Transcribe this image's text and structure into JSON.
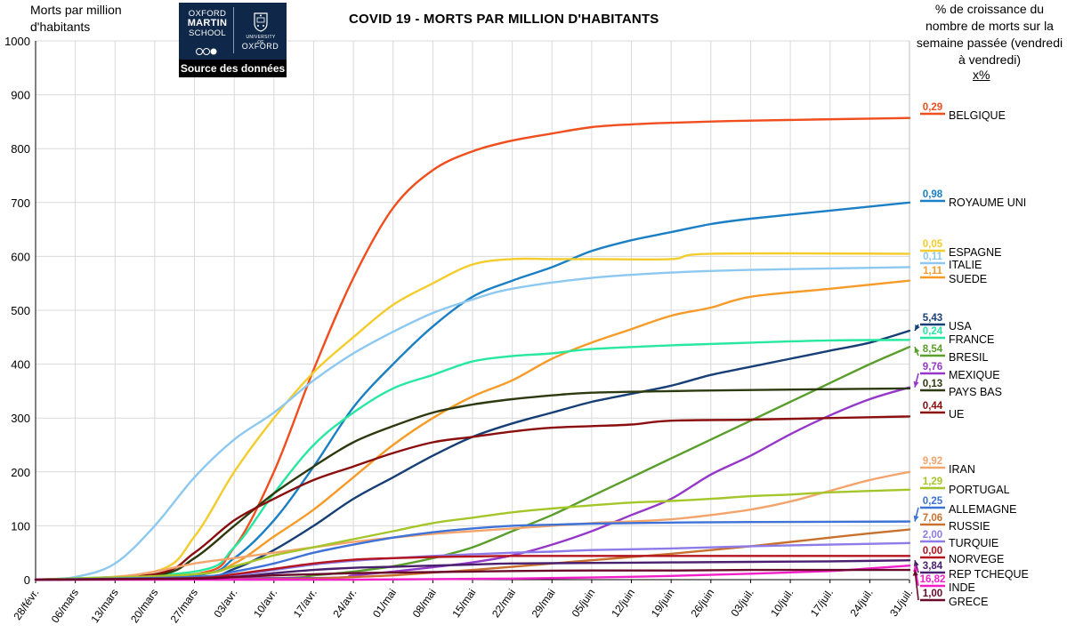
{
  "chart_data": {
    "type": "line",
    "title": "COVID 19 - MORTS PAR MILLION D'HABITANTS",
    "ylabel": "Morts par million d'habitants",
    "right_note": "% de croissance du nombre de morts sur la semaine passée (vendredi à vendredi)",
    "right_note_unit": "x%",
    "ylim": [
      0,
      1000
    ],
    "yticks": [
      0,
      100,
      200,
      300,
      400,
      500,
      600,
      700,
      800,
      900,
      1000
    ],
    "xlim": [
      0,
      154
    ],
    "xticks": [
      {
        "day": 0,
        "label": "28/févr."
      },
      {
        "day": 7,
        "label": "06/mars"
      },
      {
        "day": 14,
        "label": "13/mars"
      },
      {
        "day": 21,
        "label": "20/mars"
      },
      {
        "day": 28,
        "label": "27/mars"
      },
      {
        "day": 35,
        "label": "03/avr."
      },
      {
        "day": 42,
        "label": "10/avr."
      },
      {
        "day": 49,
        "label": "17/avr."
      },
      {
        "day": 56,
        "label": "24/avr."
      },
      {
        "day": 63,
        "label": "01/mai"
      },
      {
        "day": 70,
        "label": "08/mai"
      },
      {
        "day": 77,
        "label": "15/mai"
      },
      {
        "day": 84,
        "label": "22/mai"
      },
      {
        "day": 91,
        "label": "29/mai"
      },
      {
        "day": 98,
        "label": "05/juin"
      },
      {
        "day": 105,
        "label": "12/juin"
      },
      {
        "day": 112,
        "label": "19/juin"
      },
      {
        "day": 119,
        "label": "26/juin"
      },
      {
        "day": 126,
        "label": "03/juil."
      },
      {
        "day": 133,
        "label": "10/juil."
      },
      {
        "day": 140,
        "label": "17/juil."
      },
      {
        "day": 147,
        "label": "24/juil."
      },
      {
        "day": 154,
        "label": "31/juil."
      }
    ],
    "grid": true,
    "series": [
      {
        "name": "BELGIQUE",
        "growth": "0,29",
        "color": "#f04e1e",
        "label_y": 130,
        "x": [
          0,
          28,
          35,
          42,
          49,
          56,
          63,
          70,
          77,
          84,
          91,
          98,
          105,
          112,
          126,
          154
        ],
        "values": [
          0,
          10,
          60,
          200,
          390,
          560,
          690,
          760,
          795,
          815,
          828,
          840,
          845,
          848,
          852,
          857
        ]
      },
      {
        "name": "ROYAUME UNI",
        "growth": "0,98",
        "color": "#1a7fc4",
        "label_y": 228,
        "x": [
          0,
          28,
          35,
          42,
          49,
          56,
          63,
          70,
          77,
          84,
          91,
          98,
          105,
          112,
          119,
          126,
          140,
          154
        ],
        "values": [
          0,
          8,
          40,
          110,
          210,
          320,
          400,
          470,
          525,
          555,
          580,
          610,
          630,
          645,
          660,
          670,
          685,
          700
        ]
      },
      {
        "name": "ESPAGNE",
        "growth": "0,05",
        "color": "#f4cc2c",
        "label_y": 284,
        "x": [
          0,
          21,
          28,
          35,
          42,
          49,
          56,
          63,
          70,
          77,
          84,
          91,
          98,
          112,
          119,
          154
        ],
        "values": [
          0,
          15,
          80,
          200,
          300,
          385,
          450,
          510,
          550,
          585,
          595,
          595,
          595,
          595,
          605,
          605
        ]
      },
      {
        "name": "ITALIE",
        "growth": "0,11",
        "color": "#8cc8f0",
        "label_y": 298,
        "x": [
          0,
          7,
          14,
          21,
          28,
          35,
          42,
          49,
          56,
          63,
          70,
          77,
          84,
          98,
          112,
          126,
          154
        ],
        "values": [
          0,
          5,
          30,
          100,
          190,
          260,
          310,
          370,
          420,
          460,
          495,
          520,
          540,
          560,
          570,
          575,
          580
        ]
      },
      {
        "name": "SUEDE",
        "growth": "1,11",
        "color": "#f79b28",
        "label_y": 314,
        "x": [
          0,
          28,
          35,
          42,
          49,
          56,
          63,
          70,
          77,
          84,
          91,
          98,
          105,
          112,
          119,
          126,
          140,
          154
        ],
        "values": [
          0,
          10,
          30,
          80,
          130,
          190,
          250,
          300,
          340,
          370,
          410,
          440,
          465,
          490,
          505,
          525,
          540,
          555
        ]
      },
      {
        "name": "USA",
        "growth": "5,43",
        "color": "#173f76",
        "label_y": 367,
        "x": [
          0,
          28,
          35,
          42,
          49,
          56,
          63,
          70,
          77,
          84,
          91,
          98,
          105,
          112,
          119,
          126,
          133,
          140,
          147,
          154
        ],
        "values": [
          0,
          3,
          20,
          55,
          100,
          150,
          190,
          230,
          265,
          290,
          310,
          330,
          345,
          360,
          380,
          395,
          410,
          425,
          440,
          462
        ]
      },
      {
        "name": "FRANCE",
        "growth": "0,24",
        "color": "#27e8a0",
        "label_y": 382,
        "x": [
          0,
          28,
          35,
          42,
          49,
          56,
          63,
          70,
          77,
          84,
          91,
          98,
          112,
          126,
          140,
          154
        ],
        "values": [
          0,
          15,
          60,
          160,
          250,
          310,
          355,
          380,
          405,
          415,
          420,
          428,
          435,
          440,
          444,
          445
        ]
      },
      {
        "name": "BRESIL",
        "growth": "8,54",
        "color": "#5a9e2b",
        "label_y": 402,
        "x": [
          0,
          42,
          49,
          56,
          63,
          70,
          77,
          84,
          91,
          98,
          105,
          112,
          119,
          126,
          133,
          140,
          147,
          154
        ],
        "values": [
          0,
          3,
          8,
          15,
          25,
          40,
          60,
          90,
          120,
          155,
          190,
          225,
          260,
          295,
          330,
          365,
          400,
          432
        ]
      },
      {
        "name": "MEXIQUE",
        "growth": "9,76",
        "color": "#9538c9",
        "label_y": 422,
        "x": [
          0,
          49,
          56,
          63,
          70,
          77,
          84,
          91,
          98,
          105,
          112,
          119,
          126,
          133,
          140,
          147,
          154
        ],
        "values": [
          0,
          3,
          8,
          15,
          23,
          32,
          45,
          65,
          90,
          120,
          150,
          195,
          230,
          270,
          305,
          335,
          357
        ]
      },
      {
        "name": "PAYS BAS",
        "growth": "0,13",
        "color": "#2d3a0f",
        "label_y": 441,
        "x": [
          0,
          21,
          28,
          35,
          42,
          49,
          56,
          63,
          70,
          77,
          84,
          91,
          98,
          112,
          126,
          154
        ],
        "values": [
          0,
          8,
          40,
          100,
          160,
          210,
          255,
          285,
          310,
          325,
          335,
          342,
          347,
          350,
          352,
          355
        ]
      },
      {
        "name": "UE",
        "growth": "0,44",
        "color": "#8b0e0e",
        "label_y": 466,
        "x": [
          0,
          21,
          28,
          35,
          42,
          49,
          56,
          63,
          70,
          77,
          84,
          91,
          98,
          105,
          112,
          126,
          140,
          154
        ],
        "values": [
          0,
          10,
          50,
          110,
          150,
          185,
          210,
          235,
          255,
          265,
          275,
          282,
          285,
          288,
          295,
          297,
          300,
          303
        ]
      },
      {
        "name": "IRAN",
        "growth": "9,92",
        "color": "#f3a46c",
        "label_y": 528,
        "x": [
          0,
          14,
          21,
          28,
          35,
          42,
          49,
          56,
          63,
          70,
          77,
          84,
          91,
          98,
          105,
          112,
          119,
          126,
          133,
          140,
          147,
          154
        ],
        "values": [
          0,
          5,
          15,
          30,
          40,
          50,
          60,
          70,
          78,
          85,
          90,
          95,
          100,
          105,
          108,
          112,
          120,
          130,
          145,
          165,
          185,
          200
        ]
      },
      {
        "name": "PORTUGAL",
        "growth": "1,29",
        "color": "#a5c62a",
        "label_y": 551,
        "x": [
          0,
          28,
          35,
          42,
          49,
          56,
          63,
          70,
          77,
          84,
          91,
          98,
          105,
          112,
          119,
          126,
          133,
          140,
          154
        ],
        "values": [
          0,
          10,
          25,
          45,
          60,
          75,
          90,
          105,
          115,
          125,
          132,
          138,
          143,
          146,
          150,
          155,
          158,
          162,
          167
        ]
      },
      {
        "name": "ALLEMAGNE",
        "growth": "0,25",
        "color": "#3e72d6",
        "label_y": 573,
        "x": [
          0,
          28,
          35,
          42,
          49,
          56,
          63,
          70,
          77,
          84,
          91,
          98,
          112,
          126,
          154
        ],
        "values": [
          0,
          5,
          15,
          30,
          50,
          65,
          78,
          88,
          95,
          100,
          102,
          104,
          106,
          107,
          108
        ]
      },
      {
        "name": "RUSSIE",
        "growth": "7,06",
        "color": "#c8712e",
        "label_y": 592,
        "x": [
          0,
          42,
          49,
          56,
          63,
          70,
          77,
          84,
          91,
          98,
          105,
          112,
          119,
          126,
          133,
          140,
          147,
          154
        ],
        "values": [
          0,
          1,
          2,
          5,
          8,
          13,
          18,
          24,
          30,
          36,
          42,
          48,
          55,
          62,
          70,
          78,
          86,
          93
        ]
      },
      {
        "name": "TURQUIE",
        "growth": "2,00",
        "color": "#8c7be8",
        "label_y": 611,
        "x": [
          0,
          28,
          35,
          42,
          49,
          56,
          63,
          70,
          77,
          84,
          91,
          98,
          112,
          126,
          140,
          154
        ],
        "values": [
          0,
          2,
          8,
          18,
          28,
          35,
          40,
          44,
          47,
          50,
          52,
          55,
          58,
          62,
          65,
          68
        ]
      },
      {
        "name": "NORVEGE",
        "growth": "0,00",
        "color": "#b4141e",
        "label_y": 629,
        "x": [
          0,
          28,
          35,
          42,
          49,
          56,
          63,
          70,
          77,
          84,
          98,
          112,
          126,
          154
        ],
        "values": [
          0,
          3,
          10,
          20,
          30,
          37,
          40,
          42,
          43,
          44,
          44,
          44,
          44,
          44
        ]
      },
      {
        "name": "REP TCHEQUE",
        "growth": "3,84",
        "color": "#48206e",
        "label_y": 646,
        "x": [
          0,
          28,
          35,
          42,
          49,
          56,
          63,
          70,
          77,
          84,
          98,
          112,
          126,
          140,
          154
        ],
        "values": [
          0,
          2,
          5,
          12,
          18,
          22,
          24,
          26,
          28,
          30,
          31,
          32,
          33,
          34,
          36
        ]
      },
      {
        "name": "INDE",
        "growth": "16,82",
        "color": "#f21ec8",
        "label_y": 661,
        "x": [
          0,
          42,
          56,
          70,
          84,
          98,
          112,
          126,
          140,
          147,
          154
        ],
        "values": [
          0,
          0,
          0,
          1,
          2,
          4,
          7,
          11,
          16,
          21,
          26
        ]
      },
      {
        "name": "GRECE",
        "growth": "1,00",
        "color": "#6a0a2a",
        "label_y": 677,
        "x": [
          0,
          28,
          35,
          42,
          49,
          56,
          63,
          70,
          77,
          84,
          98,
          112,
          126,
          140,
          154
        ],
        "values": [
          0,
          2,
          5,
          8,
          10,
          12,
          13,
          14,
          15,
          16,
          17,
          17,
          18,
          18,
          18
        ]
      }
    ]
  },
  "header": {
    "logo_line1": "OXFORD",
    "logo_line2": "MARTIN",
    "logo_line3": "SCHOOL",
    "logo_university": "UNIVERSITY OF",
    "logo_oxford": "OXFORD",
    "logo_caption": "Source des données"
  }
}
